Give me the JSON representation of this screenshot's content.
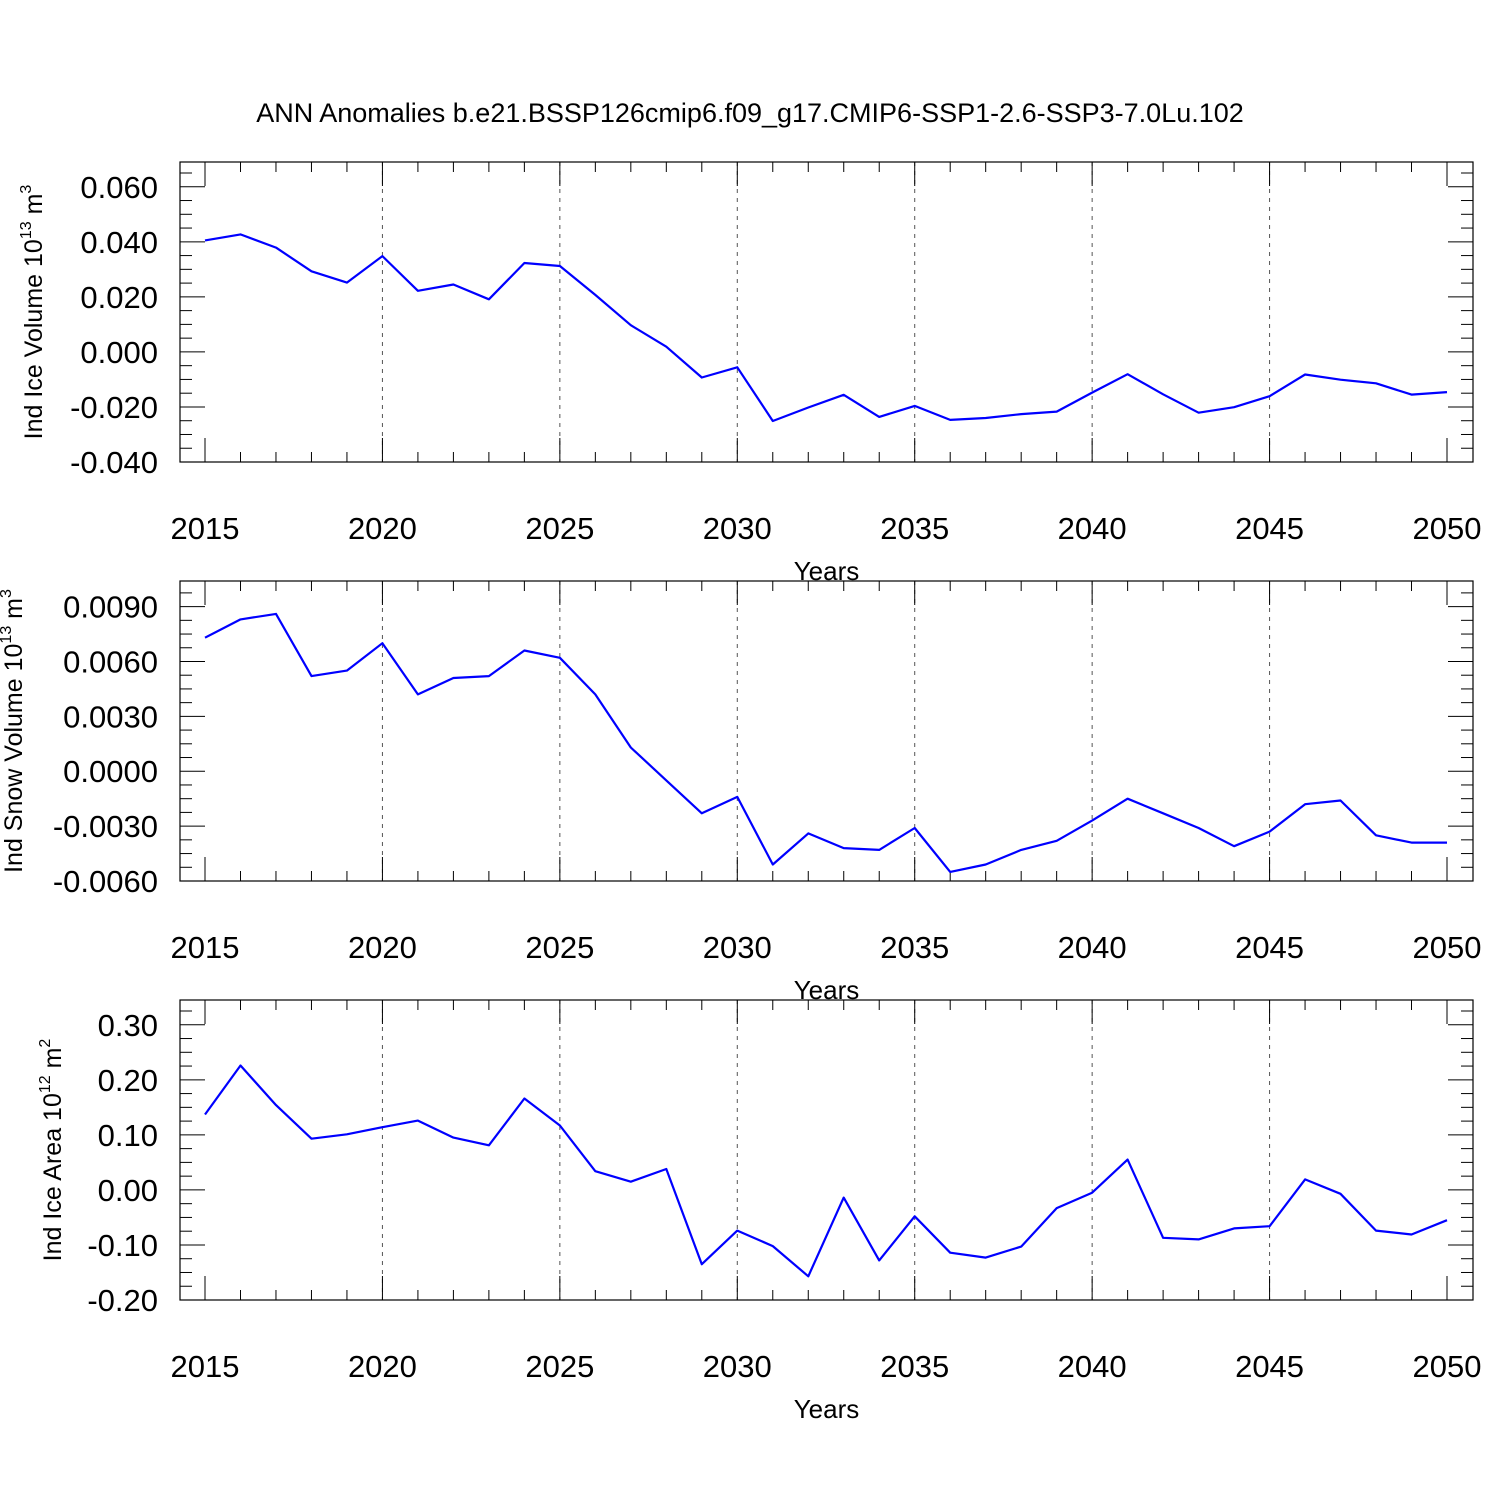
{
  "title": "ANN Anomalies b.e21.BSSP126cmip6.f09_g17.CMIP6-SSP1-2.6-SSP3-7.0Lu.102",
  "line_color": "#0000ff",
  "grid_color": "#555555",
  "chart_data": [
    {
      "type": "line",
      "ylabel": {
        "main": "Ind Ice Volume 10",
        "sup": "13",
        "unit": " m",
        "unit_sup": "3"
      },
      "xlabel": "Years",
      "xlim": [
        2015,
        2050
      ],
      "ylim": [
        -0.04,
        0.069
      ],
      "yticks": [
        -0.04,
        -0.02,
        0.0,
        0.02,
        0.04,
        0.06
      ],
      "ytick_labels": [
        "-0.040",
        "-0.020",
        "0.000",
        "0.020",
        "0.040",
        "0.060"
      ],
      "yminor_step": 0.005,
      "xticks": [
        2015,
        2020,
        2025,
        2030,
        2035,
        2040,
        2045,
        2050
      ],
      "xtick_labels": [
        "2015",
        "2020",
        "2025",
        "2030",
        "2035",
        "2040",
        "2045",
        "2050"
      ],
      "grid": "dashed vertical lines at major x ticks",
      "series": [
        {
          "x": [
            2015,
            2016,
            2017,
            2018,
            2019,
            2020,
            2021,
            2022,
            2023,
            2024,
            2025,
            2026,
            2027,
            2028,
            2029,
            2030,
            2031,
            2032,
            2033,
            2034,
            2035,
            2036,
            2037,
            2038,
            2039,
            2040,
            2041,
            2042,
            2043,
            2044,
            2045,
            2046,
            2047,
            2048,
            2049,
            2050
          ],
          "values": [
            0.0405,
            0.0427,
            0.0379,
            0.0293,
            0.0252,
            0.0348,
            0.0222,
            0.0245,
            0.0191,
            0.0323,
            0.0312,
            0.0207,
            0.0097,
            0.0019,
            -0.0093,
            -0.0056,
            -0.0251,
            -0.0202,
            -0.0156,
            -0.0236,
            -0.0196,
            -0.0247,
            -0.024,
            -0.0226,
            -0.0217,
            -0.0148,
            -0.0081,
            -0.0154,
            -0.0221,
            -0.0201,
            -0.0161,
            -0.0082,
            -0.0101,
            -0.0114,
            -0.0155,
            -0.0146
          ]
        }
      ]
    },
    {
      "type": "line",
      "ylabel": {
        "main": "Ind Snow Volume 10",
        "sup": "13",
        "unit": " m",
        "unit_sup": "3"
      },
      "xlabel": "Years",
      "xlim": [
        2015,
        2050
      ],
      "ylim": [
        -0.006,
        0.0104
      ],
      "yticks": [
        -0.006,
        -0.003,
        0.0,
        0.003,
        0.006,
        0.009
      ],
      "ytick_labels": [
        "-0.0060",
        "-0.0030",
        "0.0000",
        "0.0030",
        "0.0060",
        "0.0090"
      ],
      "yminor_step": 0.00075,
      "xticks": [
        2015,
        2020,
        2025,
        2030,
        2035,
        2040,
        2045,
        2050
      ],
      "xtick_labels": [
        "2015",
        "2020",
        "2025",
        "2030",
        "2035",
        "2040",
        "2045",
        "2050"
      ],
      "grid": "dashed vertical lines at major x ticks",
      "series": [
        {
          "x": [
            2015,
            2016,
            2017,
            2018,
            2019,
            2020,
            2021,
            2022,
            2023,
            2024,
            2025,
            2026,
            2027,
            2028,
            2029,
            2030,
            2031,
            2032,
            2033,
            2034,
            2035,
            2036,
            2037,
            2038,
            2039,
            2040,
            2041,
            2042,
            2043,
            2044,
            2045,
            2046,
            2047,
            2048,
            2049,
            2050
          ],
          "values": [
            0.0073,
            0.0083,
            0.0086,
            0.0052,
            0.0055,
            0.007,
            0.0042,
            0.0051,
            0.0052,
            0.0066,
            0.0062,
            0.0042,
            0.0013,
            -0.0005,
            -0.0023,
            -0.0014,
            -0.0051,
            -0.0034,
            -0.0042,
            -0.0043,
            -0.0031,
            -0.0055,
            -0.0051,
            -0.0043,
            -0.0038,
            -0.0027,
            -0.0015,
            -0.0023,
            -0.0031,
            -0.0041,
            -0.0033,
            -0.0018,
            -0.0016,
            -0.0035,
            -0.0039,
            -0.0039
          ]
        }
      ]
    },
    {
      "type": "line",
      "ylabel": {
        "main": "Ind Ice Area 10",
        "sup": "12",
        "unit": " m",
        "unit_sup": "2"
      },
      "xlabel": "Years",
      "xlim": [
        2015,
        2050
      ],
      "ylim": [
        -0.2,
        0.345
      ],
      "yticks": [
        -0.2,
        -0.1,
        0.0,
        0.1,
        0.2,
        0.3
      ],
      "ytick_labels": [
        "-0.20",
        "-0.10",
        "0.00",
        "0.10",
        "0.20",
        "0.30"
      ],
      "yminor_step": 0.025,
      "xticks": [
        2015,
        2020,
        2025,
        2030,
        2035,
        2040,
        2045,
        2050
      ],
      "xtick_labels": [
        "2015",
        "2020",
        "2025",
        "2030",
        "2035",
        "2040",
        "2045",
        "2050"
      ],
      "grid": "dashed vertical lines at major x ticks",
      "series": [
        {
          "x": [
            2015,
            2016,
            2017,
            2018,
            2019,
            2020,
            2021,
            2022,
            2023,
            2024,
            2025,
            2026,
            2027,
            2028,
            2029,
            2030,
            2031,
            2032,
            2033,
            2034,
            2035,
            2036,
            2037,
            2038,
            2039,
            2040,
            2041,
            2042,
            2043,
            2044,
            2045,
            2046,
            2047,
            2048,
            2049,
            2050
          ],
          "values": [
            0.137,
            0.226,
            0.154,
            0.093,
            0.101,
            0.114,
            0.126,
            0.095,
            0.081,
            0.166,
            0.117,
            0.034,
            0.015,
            0.038,
            -0.135,
            -0.074,
            -0.102,
            -0.157,
            -0.014,
            -0.128,
            -0.048,
            -0.114,
            -0.123,
            -0.103,
            -0.033,
            -0.005,
            0.055,
            -0.087,
            -0.09,
            -0.07,
            -0.066,
            0.019,
            -0.007,
            -0.074,
            -0.081,
            -0.055
          ]
        }
      ]
    }
  ]
}
